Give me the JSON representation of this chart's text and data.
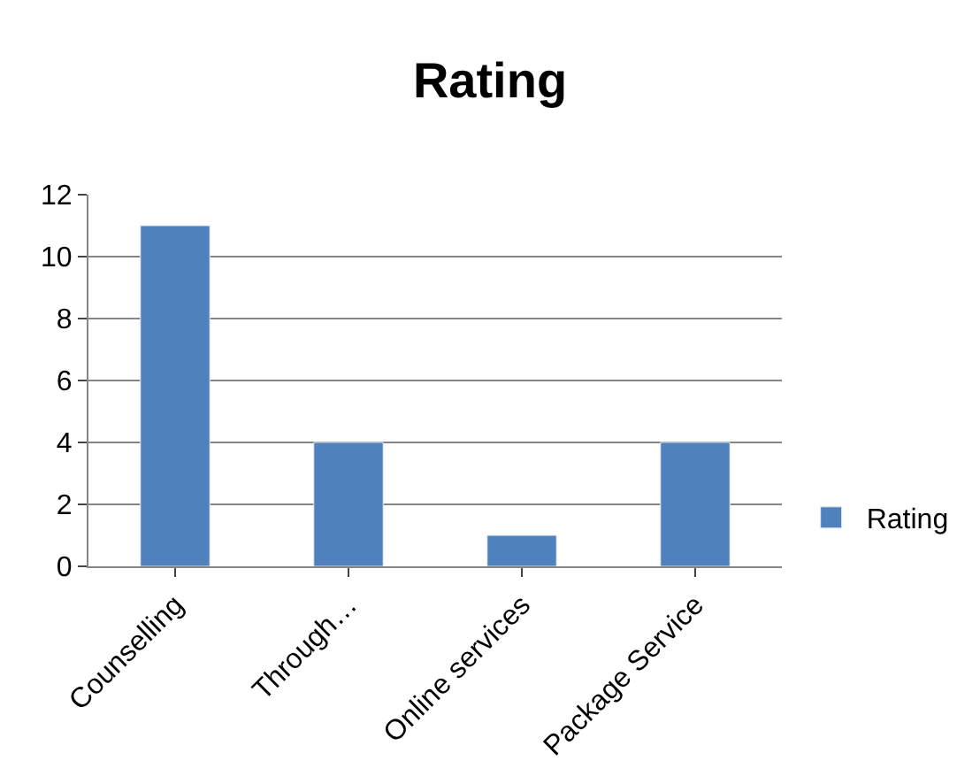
{
  "chart_data": {
    "type": "bar",
    "title": "Rating",
    "categories": [
      "Counselling",
      "Through…",
      "Online services",
      "Package Service"
    ],
    "series": [
      {
        "name": "Rating",
        "color": "#4f81bd",
        "values": [
          11,
          4,
          1,
          4
        ]
      }
    ],
    "ylim": [
      0,
      12
    ],
    "yticks": [
      0,
      2,
      4,
      6,
      8,
      10,
      12
    ],
    "grid": "y",
    "legend": "right"
  }
}
